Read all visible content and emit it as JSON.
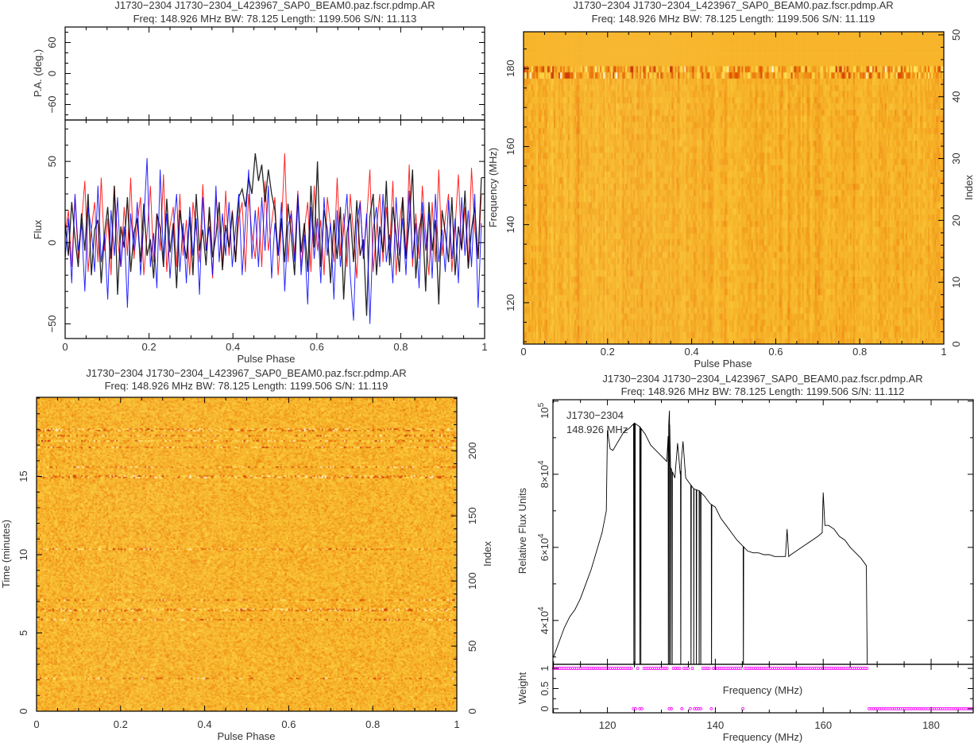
{
  "chart_data": [
    {
      "type": "line",
      "title": [
        "J1730−2304 J1730−2304_L423967_SAP0_BEAM0.paz.fscr.pdmp.AR",
        "Freq: 148.926 MHz BW: 78.125 Length: 1199.506 S/N: 11.113"
      ],
      "xlabel": "Pulse Phase",
      "xlim": [
        0,
        1
      ],
      "xticks": [
        0,
        0.2,
        0.4,
        0.6,
        0.8,
        1
      ],
      "xtick_labels": [
        "0",
        "0.2",
        "0.4",
        "0.6",
        "0.8",
        "1"
      ],
      "pa_panel": {
        "ylabel": "P.A. (deg.)",
        "ylim": [
          -90,
          90
        ],
        "yticks": [
          -60,
          0,
          60
        ],
        "ytick_labels": [
          "−60",
          "0",
          "60"
        ]
      },
      "flux_panel": {
        "ylabel": "Flux",
        "ylim": [
          -59,
          75.5
        ],
        "yticks": [
          -50,
          0,
          50
        ],
        "ytick_labels": [
          "−50",
          "0",
          "50"
        ]
      },
      "grid": false,
      "series": [
        {
          "color": "#ff0000",
          "values": [
            5,
            20,
            -15,
            28,
            -10,
            12,
            38,
            -18,
            8,
            25,
            -12,
            40,
            -5,
            15,
            -20,
            35,
            2,
            -15,
            22,
            -8,
            40,
            -10,
            12,
            28,
            -20,
            5,
            35,
            -12,
            18,
            -5,
            42,
            -18,
            10,
            22,
            -15,
            30,
            -8,
            14,
            -20,
            25,
            8,
            -12,
            36,
            -5,
            18,
            -22,
            28,
            10,
            -15,
            32,
            -8,
            20,
            -12,
            15,
            25,
            -18,
            30,
            5,
            -10,
            22,
            -15,
            38,
            -5,
            12,
            28,
            -20,
            10,
            55,
            -12,
            20,
            -8,
            32,
            -15,
            8,
            25,
            -18,
            35,
            -5,
            14,
            -20,
            28,
            10,
            -12,
            40,
            -8,
            18,
            -15,
            30,
            5,
            -22,
            26,
            -10,
            14,
            45,
            -18,
            8,
            30,
            -12,
            22,
            -5,
            38,
            -20,
            12,
            28,
            -8,
            48,
            -15,
            18,
            -10,
            35,
            5,
            -20,
            25,
            -12,
            45,
            -8,
            15,
            30,
            -18,
            10,
            42,
            -5,
            22,
            -15,
            46,
            8,
            -10,
            30
          ]
        },
        {
          "color": "#000000",
          "values": [
            12,
            -8,
            25,
            3,
            -15,
            18,
            -5,
            30,
            -20,
            8,
            14,
            -25,
            5,
            22,
            -10,
            35,
            -32,
            10,
            -3,
            28,
            -18,
            6,
            15,
            -12,
            24,
            -8,
            2,
            -22,
            18,
            9,
            -15,
            27,
            -6,
            12,
            -28,
            20,
            3,
            -10,
            16,
            -20,
            30,
            -5,
            8,
            -14,
            22,
            -9,
            4,
            25,
            -17,
            11,
            -3,
            19,
            -12,
            28,
            33,
            22,
            40,
            30,
            55,
            38,
            48,
            25,
            45,
            30,
            20,
            -8,
            15,
            -12,
            24,
            5,
            -20,
            28,
            -6,
            12,
            -18,
            35,
            -3,
            50,
            -15,
            20,
            8,
            -25,
            14,
            -10,
            22,
            -35,
            6,
            18,
            -12,
            26,
            -8,
            2,
            -45,
            16,
            30,
            -20,
            10,
            -6,
            38,
            -14,
            22,
            5,
            -18,
            28,
            -10,
            12,
            45,
            -22,
            8,
            18,
            -30,
            25,
            -5,
            14,
            -38,
            20,
            6,
            -12,
            28,
            -20,
            10,
            -4,
            32,
            -16,
            8,
            22,
            -10,
            40
          ]
        },
        {
          "color": "#0000ff",
          "values": [
            -10,
            15,
            -25,
            30,
            -5,
            12,
            -30,
            22,
            8,
            -18,
            35,
            -12,
            5,
            -35,
            20,
            -8,
            28,
            -15,
            10,
            -40,
            18,
            -5,
            25,
            -20,
            12,
            52,
            -15,
            6,
            -28,
            45,
            -10,
            18,
            -22,
            8,
            30,
            -18,
            12,
            -25,
            22,
            -8,
            15,
            -32,
            28,
            -5,
            10,
            -20,
            35,
            -12,
            18,
            -8,
            25,
            -15,
            8,
            30,
            -20,
            12,
            45,
            -10,
            20,
            -15,
            28,
            -5,
            35,
            -22,
            12,
            -8,
            25,
            -30,
            10,
            18,
            -12,
            30,
            -20,
            5,
            -38,
            22,
            -10,
            15,
            -25,
            28,
            -8,
            12,
            -35,
            20,
            -15,
            8,
            30,
            -20,
            -48,
            12,
            25,
            -10,
            18,
            -50,
            8,
            22,
            -15,
            30,
            -12,
            5,
            -25,
            28,
            -8,
            15,
            -20,
            32,
            -10,
            12,
            -28,
            25,
            -5,
            18,
            -22,
            30,
            -12,
            8,
            -18,
            26,
            -10,
            15,
            -25,
            28,
            -8,
            20,
            -15,
            30,
            -40,
            12
          ]
        }
      ]
    },
    {
      "type": "heatmap",
      "title": [
        "J1730−2304 J1730−2304_L423967_SAP0_BEAM0.paz.fscr.pdmp.AR",
        "Freq: 148.926 MHz BW: 78.125 Length: 1199.506 S/N: 11.119"
      ],
      "xlabel": "Pulse Phase",
      "ylabel": "Frequency (MHz)",
      "y2label": "Index",
      "xlim": [
        0,
        1
      ],
      "xticks": [
        0,
        0.2,
        0.4,
        0.6,
        0.8,
        1
      ],
      "xtick_labels": [
        "0",
        "0.2",
        "0.4",
        "0.6",
        "0.8",
        "1"
      ],
      "ylim": [
        109.4,
        189.4
      ],
      "yticks": [
        120,
        140,
        160,
        180
      ],
      "ytick_labels": [
        "120",
        "140",
        "160",
        "180"
      ],
      "y2lim": [
        0,
        50.5
      ],
      "y2ticks": [
        0,
        10,
        20,
        30,
        40,
        50
      ],
      "y2tick_labels": [
        "0",
        "10",
        "20",
        "30",
        "40",
        "50"
      ],
      "colormap": "heat",
      "high_variance_band_mhz": [
        177.5,
        181
      ],
      "flat_above_mhz": 181
    },
    {
      "type": "heatmap",
      "title": [
        "J1730−2304 J1730−2304_L423967_SAP0_BEAM0.paz.fscr.pdmp.AR",
        "Freq: 148.926 MHz BW: 78.125 Length: 1199.506 S/N: 11.119"
      ],
      "xlabel": "Pulse Phase",
      "ylabel": "Time (minutes)",
      "y2label": "Index",
      "xlim": [
        0,
        1
      ],
      "xticks": [
        0,
        0.2,
        0.4,
        0.6,
        0.8,
        1
      ],
      "xtick_labels": [
        "0",
        "0.2",
        "0.4",
        "0.6",
        "0.8",
        "1"
      ],
      "ylim": [
        0,
        20.05
      ],
      "yticks": [
        0,
        5,
        10,
        15
      ],
      "ytick_labels": [
        "0",
        "5",
        "10",
        "15"
      ],
      "y2lim": [
        0,
        241
      ],
      "y2ticks": [
        0,
        50,
        100,
        150,
        200
      ],
      "y2tick_labels": [
        "0",
        "50",
        "100",
        "150",
        "200"
      ],
      "colormap": "heat",
      "bright_rows_minutes": [
        2.1,
        5.85,
        6.5,
        7.15,
        10.4,
        15.0,
        15.6,
        16.9,
        17.3,
        17.65,
        18.0
      ]
    },
    {
      "type": "line",
      "title": [
        "J1730−2304 J1730−2304_L423967_SAP0_BEAM0.paz.fscr.pdmp.AR",
        "Freq: 148.926 MHz BW: 78.125 Length: 1199.506 S/N: 11.112"
      ],
      "annotations": [
        "J1730−2304",
        "148.926 MHz"
      ],
      "xlabel": "Frequency (MHz)",
      "ylabel": "Relative Flux Units",
      "xlim": [
        109.9,
        187.8
      ],
      "xticks": [
        120,
        140,
        160,
        180
      ],
      "xtick_labels": [
        "120",
        "140",
        "160",
        "180"
      ],
      "ylim": [
        28000,
        100400
      ],
      "yticks": [
        40000,
        60000,
        80000,
        100000
      ],
      "ytick_labels": [
        {
          "m": "4×10",
          "e": "4"
        },
        {
          "m": "6×10",
          "e": "4"
        },
        {
          "m": "8×10",
          "e": "4"
        },
        {
          "m": "10",
          "e": "5"
        }
      ],
      "line_color": "#000000",
      "spectrum": [
        [
          110,
          30000
        ],
        [
          111,
          34000
        ],
        [
          112,
          38000
        ],
        [
          113,
          41000
        ],
        [
          114,
          43000
        ],
        [
          115,
          46000
        ],
        [
          116,
          50000
        ],
        [
          117,
          54000
        ],
        [
          118,
          59000
        ],
        [
          119,
          64000
        ],
        [
          119.8,
          70000
        ],
        [
          120,
          92000
        ],
        [
          120.5,
          87000
        ],
        [
          121,
          86500
        ],
        [
          122,
          89000
        ],
        [
          123,
          91500
        ],
        [
          124,
          92500
        ],
        [
          125,
          94000
        ],
        [
          126,
          93000
        ],
        [
          127,
          91000
        ],
        [
          128,
          88000
        ],
        [
          129,
          86500
        ],
        [
          130,
          85000
        ],
        [
          131,
          83500
        ],
        [
          131.5,
          97400
        ],
        [
          131.7,
          82000
        ],
        [
          132.5,
          79000
        ],
        [
          133,
          88500
        ],
        [
          133.5,
          80000
        ],
        [
          134,
          89000
        ],
        [
          134.5,
          79000
        ],
        [
          135,
          78000
        ],
        [
          136,
          76000
        ],
        [
          137,
          75500
        ],
        [
          138,
          74000
        ],
        [
          139,
          72000
        ],
        [
          140,
          71000
        ],
        [
          141,
          68000
        ],
        [
          142,
          66000
        ],
        [
          143,
          64000
        ],
        [
          144,
          62000
        ],
        [
          145,
          60500
        ],
        [
          146,
          59000
        ],
        [
          147,
          58500
        ],
        [
          148,
          58500
        ],
        [
          149,
          58000
        ],
        [
          150,
          58000
        ],
        [
          151,
          57500
        ],
        [
          152,
          57500
        ],
        [
          153,
          57500
        ],
        [
          153.3,
          65000
        ],
        [
          153.6,
          57500
        ],
        [
          154,
          58000
        ],
        [
          155,
          59000
        ],
        [
          156,
          60000
        ],
        [
          157,
          61000
        ],
        [
          158,
          62000
        ],
        [
          159,
          63000
        ],
        [
          159.8,
          64000
        ],
        [
          160,
          75000
        ],
        [
          160.3,
          66000
        ],
        [
          161,
          66000
        ],
        [
          162,
          65000
        ],
        [
          163,
          63000
        ],
        [
          164,
          62000
        ],
        [
          165,
          60000
        ],
        [
          166,
          58500
        ],
        [
          167,
          57000
        ],
        [
          168,
          55000
        ],
        [
          168.2,
          0
        ]
      ],
      "zero_weight_channels_mhz": [
        124.9,
        125.1,
        126.0,
        126.2,
        131.3,
        131.5,
        131.7,
        132.0,
        133.6,
        135.5,
        136.0,
        136.5,
        137.0,
        137.3,
        139.3,
        145.2
      ],
      "zero_weight_above_mhz": 168.2,
      "weight_panel": {
        "ylabel": "Weight",
        "inner_label": "Frequency (MHz)",
        "ylim": [
          -0.1,
          1.1
        ],
        "yticks": [
          0,
          0.5,
          1
        ],
        "ytick_labels": [
          "0",
          "0.5",
          "1"
        ],
        "marker_color": "#ff00ff"
      }
    }
  ]
}
